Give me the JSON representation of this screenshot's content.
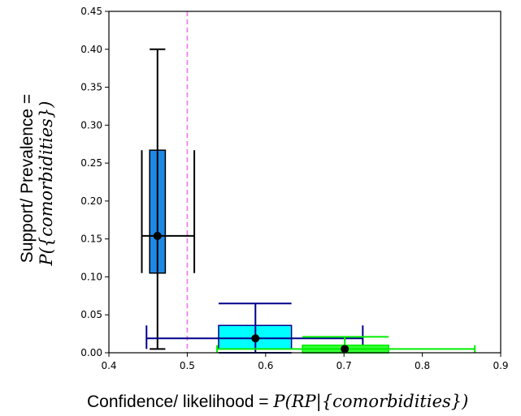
{
  "chart_data": {
    "type": "box",
    "xlabel": {
      "prefix": "Confidence/ likelihood = ",
      "math": "P(RP|{comorbidities})"
    },
    "ylabel": {
      "line1": "Support/ Prevalence =",
      "line2": "P({comorbidities})"
    },
    "xlim": [
      0.4,
      0.9
    ],
    "ylim": [
      0.0,
      0.45
    ],
    "xticks": [
      "0.4",
      "0.5",
      "0.6",
      "0.7",
      "0.8",
      "0.9"
    ],
    "yticks": [
      "0.00",
      "0.05",
      "0.10",
      "0.15",
      "0.20",
      "0.25",
      "0.30",
      "0.35",
      "0.40",
      "0.45"
    ],
    "grid": false,
    "reference_line": {
      "x": 0.5,
      "color": "#ee82ee",
      "style": "dashed"
    },
    "series": [
      {
        "color": "#1e88e5",
        "edge": "#000000",
        "center": {
          "x": 0.462,
          "y": 0.154
        },
        "x_box": [
          0.452,
          0.472
        ],
        "x_whiskers": [
          0.442,
          0.509
        ],
        "y_box": [
          0.105,
          0.267
        ],
        "y_whiskers": [
          0.005,
          0.4
        ]
      },
      {
        "color": "#00ffff",
        "edge": "#00008b",
        "center": {
          "x": 0.587,
          "y": 0.019
        },
        "x_box": [
          0.54,
          0.633
        ],
        "x_whiskers": [
          0.448,
          0.724
        ],
        "y_box": [
          0.005,
          0.036
        ],
        "y_whiskers": [
          0.0,
          0.065
        ]
      },
      {
        "color": "#33ff33",
        "edge": "#00ee00",
        "center": {
          "x": 0.701,
          "y": 0.005
        },
        "x_box": [
          0.647,
          0.757
        ],
        "x_whiskers": [
          0.538,
          0.867
        ],
        "y_box": [
          0.0,
          0.01
        ],
        "y_whiskers": [
          0.0,
          0.021
        ]
      }
    ]
  }
}
